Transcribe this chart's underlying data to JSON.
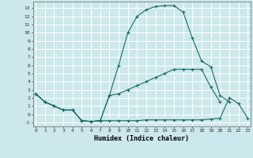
{
  "xlabel": "Humidex (Indice chaleur)",
  "bg_color": "#cce8ec",
  "grid_color": "#ffffff",
  "line_color": "#1a6b6b",
  "xticks": [
    0,
    1,
    2,
    3,
    4,
    5,
    6,
    7,
    8,
    9,
    10,
    11,
    12,
    13,
    14,
    15,
    16,
    17,
    18,
    19,
    20,
    21,
    22,
    23
  ],
  "yticks": [
    -1,
    0,
    1,
    2,
    3,
    4,
    5,
    6,
    7,
    8,
    9,
    10,
    11,
    12,
    13
  ],
  "xlim": [
    -0.3,
    23.3
  ],
  "ylim": [
    -1.5,
    13.8
  ],
  "line1_x": [
    0,
    1,
    2,
    3,
    4,
    5,
    6,
    7,
    8,
    9,
    10,
    11,
    12,
    13,
    14,
    15,
    16,
    17,
    18,
    19,
    20,
    21
  ],
  "line1_y": [
    2.5,
    1.5,
    1.0,
    0.5,
    0.5,
    -0.8,
    -0.9,
    -0.8,
    2.3,
    6.0,
    10.0,
    12.0,
    12.8,
    13.2,
    13.3,
    13.3,
    12.5,
    9.3,
    6.5,
    5.8,
    2.3,
    1.5
  ],
  "line2_x": [
    0,
    1,
    2,
    3,
    4,
    5,
    6,
    7,
    8,
    9,
    10,
    11,
    12,
    13,
    14,
    15,
    16,
    17,
    18,
    19,
    20
  ],
  "line2_y": [
    2.5,
    1.5,
    1.0,
    0.5,
    0.5,
    -0.8,
    -0.9,
    -0.8,
    2.3,
    2.5,
    3.0,
    3.5,
    4.0,
    4.5,
    5.0,
    5.5,
    5.5,
    5.5,
    5.5,
    3.3,
    1.5
  ],
  "line3_x": [
    0,
    1,
    2,
    3,
    4,
    5,
    6,
    7,
    8,
    9,
    10,
    11,
    12,
    13,
    14,
    15,
    16,
    17,
    18,
    19,
    20,
    21,
    22,
    23
  ],
  "line3_y": [
    2.5,
    1.5,
    1.0,
    0.5,
    0.5,
    -0.8,
    -0.9,
    -0.8,
    -0.8,
    -0.8,
    -0.8,
    -0.8,
    -0.7,
    -0.7,
    -0.7,
    -0.7,
    -0.7,
    -0.7,
    -0.7,
    -0.6,
    -0.5,
    2.0,
    1.3,
    -0.5
  ]
}
